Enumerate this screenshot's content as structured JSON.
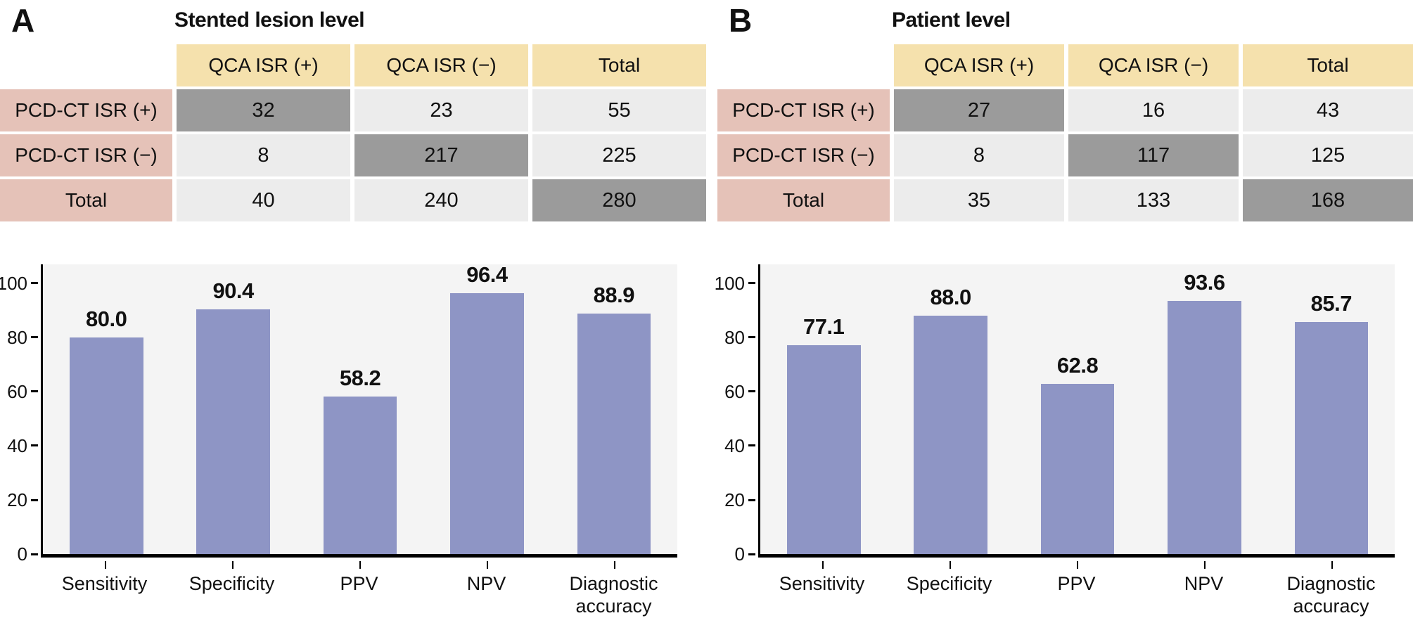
{
  "colors": {
    "header_yellow": "#f5e1ad",
    "row_pink": "#e5c2b8",
    "cell_light": "#ececec",
    "cell_dark": "#9b9b9b",
    "bar_fill": "#8e95c5",
    "chart_bg": "#f4f4f4"
  },
  "panels": [
    {
      "letter": "A",
      "title": "Stented lesion level",
      "table": {
        "corner": "",
        "col_headers": [
          "QCA ISR (+)",
          "QCA ISR (−)",
          "Total"
        ],
        "rows": [
          {
            "header": "PCD-CT ISR (+)",
            "values": [
              "32",
              "23",
              "55"
            ],
            "highlight_col": 0
          },
          {
            "header": "PCD-CT ISR (−)",
            "values": [
              "8",
              "217",
              "225"
            ],
            "highlight_col": 1
          },
          {
            "header": "Total",
            "values": [
              "40",
              "240",
              "280"
            ],
            "highlight_col": 2
          }
        ]
      }
    },
    {
      "letter": "B",
      "title": "Patient level",
      "table": {
        "corner": "",
        "col_headers": [
          "QCA ISR (+)",
          "QCA ISR (−)",
          "Total"
        ],
        "rows": [
          {
            "header": "PCD-CT ISR (+)",
            "values": [
              "27",
              "16",
              "43"
            ],
            "highlight_col": 0
          },
          {
            "header": "PCD-CT ISR (−)",
            "values": [
              "8",
              "117",
              "125"
            ],
            "highlight_col": 1
          },
          {
            "header": "Total",
            "values": [
              "35",
              "133",
              "168"
            ],
            "highlight_col": 2
          }
        ]
      }
    }
  ],
  "chart_data": [
    {
      "type": "bar",
      "title": "Stented lesion level",
      "categories": [
        "Sensitivity",
        "Specificity",
        "PPV",
        "NPV",
        "Diagnostic accuracy"
      ],
      "values": [
        80.0,
        90.4,
        58.2,
        96.4,
        88.9
      ],
      "value_labels": [
        "80.0",
        "90.4",
        "58.2",
        "96.4",
        "88.9"
      ],
      "xlabel": "",
      "ylabel": "",
      "yticks": [
        0,
        20,
        40,
        60,
        80,
        100
      ],
      "ylim": [
        0,
        107
      ],
      "grid": false,
      "legend": "none"
    },
    {
      "type": "bar",
      "title": "Patient level",
      "categories": [
        "Sensitivity",
        "Specificity",
        "PPV",
        "NPV",
        "Diagnostic accuracy"
      ],
      "values": [
        77.1,
        88.0,
        62.8,
        93.6,
        85.7
      ],
      "value_labels": [
        "77.1",
        "88.0",
        "62.8",
        "93.6",
        "85.7"
      ],
      "xlabel": "",
      "ylabel": "",
      "yticks": [
        0,
        20,
        40,
        60,
        80,
        100
      ],
      "ylim": [
        0,
        107
      ],
      "grid": false,
      "legend": "none"
    }
  ]
}
